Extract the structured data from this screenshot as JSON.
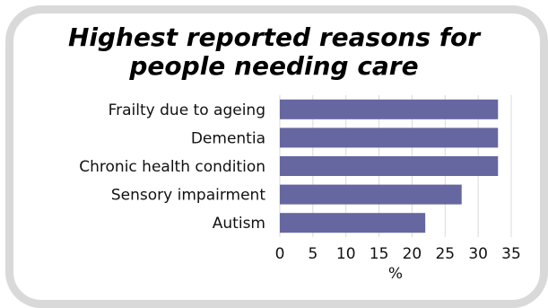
{
  "chart_data": {
    "type": "bar",
    "orientation": "horizontal",
    "title": "Highest reported reasons for people needing care",
    "title_lines": [
      "Highest reported reasons for",
      "people needing care"
    ],
    "categories": [
      "Frailty due to ageing",
      "Dementia",
      "Chronic health condition",
      "Sensory impairment",
      "Autism"
    ],
    "values": [
      33,
      33,
      33,
      27.5,
      22
    ],
    "xlabel": "%",
    "ylabel": "",
    "xlim": [
      0,
      35
    ],
    "xticks": [
      0,
      5,
      10,
      15,
      20,
      25,
      30,
      35
    ],
    "grid": "vertical",
    "bar_color": "#6667a0",
    "grid_color": "#d9d9d9"
  }
}
